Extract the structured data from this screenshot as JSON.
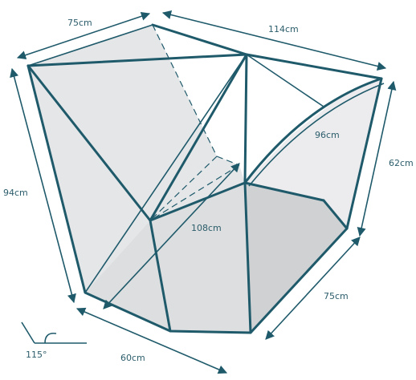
{
  "dimensions": {
    "top_left": "75cm",
    "top_right": "114cm",
    "right_height": "62cm",
    "left_height": "94cm",
    "inner_curve": "96cm",
    "diagonal": "108cm",
    "bottom_right": "75cm",
    "bottom_left": "60cm"
  },
  "angle": "115°",
  "colors": {
    "stroke": "#1f5a6b",
    "panel_light": "#e4e6e8",
    "panel_mid": "#d6d8da",
    "panel_dark": "#c4c6c8",
    "text": "#2c5d6b"
  }
}
